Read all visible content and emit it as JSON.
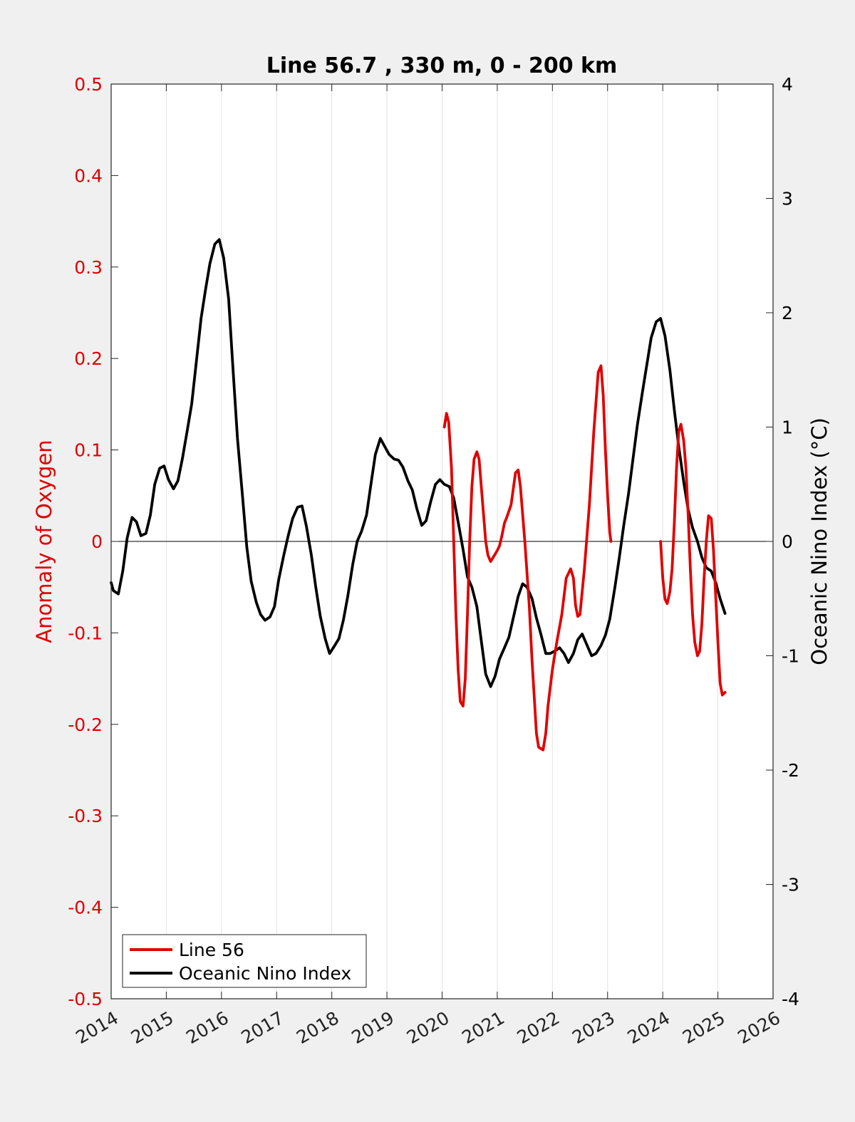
{
  "chart_data": {
    "type": "line",
    "title": "Line 56.7 , 330 m, 0 - 200 km",
    "xlabel": "",
    "ylabel_left": "Anomaly of Oxygen",
    "ylabel_right": "Oceanic Nino Index (°C)",
    "xlim": [
      2014,
      2026
    ],
    "ylim_left": [
      -0.5,
      0.5
    ],
    "ylim_right": [
      -4,
      4
    ],
    "x_ticks": [
      "2014",
      "2015",
      "2016",
      "2017",
      "2018",
      "2019",
      "2020",
      "2021",
      "2022",
      "2023",
      "2024",
      "2025",
      "2026"
    ],
    "y_ticks_left": [
      "-0.5",
      "-0.4",
      "-0.3",
      "-0.2",
      "-0.1",
      "0",
      "0.1",
      "0.2",
      "0.3",
      "0.4",
      "0.5"
    ],
    "y_ticks_right": [
      "-4",
      "-3",
      "-2",
      "-1",
      "0",
      "1",
      "2",
      "3",
      "4"
    ],
    "grid": "vertical",
    "zero_line": true,
    "legend_position": "bottom-left",
    "colors": {
      "line56": "#e00000",
      "oni": "#000000",
      "left_axis": "#e00000",
      "right_axis": "#000000"
    },
    "series": [
      {
        "name": "Line 56",
        "axis": "left",
        "color": "#e00000",
        "segments": [
          [
            [
              2020.04,
              0.125
            ],
            [
              2020.08,
              0.14
            ],
            [
              2020.12,
              0.13
            ],
            [
              2020.17,
              0.08
            ],
            [
              2020.21,
              0.0
            ],
            [
              2020.25,
              -0.08
            ],
            [
              2020.29,
              -0.14
            ],
            [
              2020.33,
              -0.175
            ],
            [
              2020.38,
              -0.18
            ],
            [
              2020.42,
              -0.15
            ],
            [
              2020.46,
              -0.08
            ],
            [
              2020.5,
              0.0
            ],
            [
              2020.54,
              0.06
            ],
            [
              2020.58,
              0.09
            ],
            [
              2020.63,
              0.098
            ],
            [
              2020.67,
              0.09
            ],
            [
              2020.71,
              0.06
            ],
            [
              2020.75,
              0.03
            ],
            [
              2020.79,
              0.0
            ],
            [
              2020.83,
              -0.015
            ],
            [
              2020.88,
              -0.022
            ],
            [
              2020.92,
              -0.018
            ],
            [
              2021.0,
              -0.01
            ],
            [
              2021.04,
              -0.005
            ],
            [
              2021.08,
              0.005
            ],
            [
              2021.13,
              0.02
            ],
            [
              2021.17,
              0.026
            ],
            [
              2021.25,
              0.04
            ],
            [
              2021.33,
              0.075
            ],
            [
              2021.38,
              0.078
            ],
            [
              2021.42,
              0.06
            ],
            [
              2021.5,
              0.0
            ],
            [
              2021.58,
              -0.07
            ],
            [
              2021.63,
              -0.13
            ],
            [
              2021.67,
              -0.17
            ],
            [
              2021.71,
              -0.21
            ],
            [
              2021.75,
              -0.225
            ],
            [
              2021.83,
              -0.228
            ],
            [
              2021.88,
              -0.21
            ],
            [
              2021.92,
              -0.18
            ],
            [
              2022.0,
              -0.14
            ],
            [
              2022.08,
              -0.11
            ],
            [
              2022.17,
              -0.08
            ],
            [
              2022.25,
              -0.04
            ],
            [
              2022.33,
              -0.03
            ],
            [
              2022.38,
              -0.04
            ],
            [
              2022.42,
              -0.07
            ],
            [
              2022.46,
              -0.082
            ],
            [
              2022.5,
              -0.08
            ],
            [
              2022.58,
              -0.03
            ],
            [
              2022.67,
              0.04
            ],
            [
              2022.75,
              0.12
            ],
            [
              2022.83,
              0.185
            ],
            [
              2022.88,
              0.192
            ],
            [
              2022.92,
              0.16
            ],
            [
              2022.96,
              0.1
            ],
            [
              2023.0,
              0.05
            ],
            [
              2023.04,
              0.01
            ],
            [
              2023.06,
              0.0
            ]
          ],
          [
            [
              2023.96,
              0.0
            ],
            [
              2024.0,
              -0.04
            ],
            [
              2024.04,
              -0.063
            ],
            [
              2024.08,
              -0.068
            ],
            [
              2024.13,
              -0.055
            ],
            [
              2024.17,
              -0.03
            ],
            [
              2024.21,
              0.02
            ],
            [
              2024.25,
              0.08
            ],
            [
              2024.29,
              0.12
            ],
            [
              2024.33,
              0.128
            ],
            [
              2024.38,
              0.11
            ],
            [
              2024.42,
              0.08
            ],
            [
              2024.46,
              0.03
            ],
            [
              2024.5,
              -0.03
            ],
            [
              2024.54,
              -0.08
            ],
            [
              2024.58,
              -0.11
            ],
            [
              2024.63,
              -0.125
            ],
            [
              2024.67,
              -0.12
            ],
            [
              2024.71,
              -0.09
            ],
            [
              2024.75,
              -0.04
            ],
            [
              2024.79,
              0.0
            ],
            [
              2024.83,
              0.028
            ],
            [
              2024.88,
              0.025
            ],
            [
              2024.92,
              -0.01
            ],
            [
              2024.96,
              -0.06
            ],
            [
              2025.0,
              -0.11
            ],
            [
              2025.04,
              -0.155
            ],
            [
              2025.08,
              -0.168
            ],
            [
              2025.13,
              -0.165
            ]
          ]
        ]
      },
      {
        "name": "Oceanic Nino Index",
        "axis": "right",
        "color": "#000000",
        "segments": [
          [
            [
              2014.0,
              -0.36
            ],
            [
              2014.04,
              -0.43
            ],
            [
              2014.13,
              -0.46
            ],
            [
              2014.21,
              -0.26
            ],
            [
              2014.29,
              0.03
            ],
            [
              2014.38,
              0.21
            ],
            [
              2014.46,
              0.17
            ],
            [
              2014.54,
              0.05
            ],
            [
              2014.63,
              0.07
            ],
            [
              2014.71,
              0.23
            ],
            [
              2014.79,
              0.5
            ],
            [
              2014.88,
              0.64
            ],
            [
              2014.96,
              0.66
            ],
            [
              2015.04,
              0.54
            ],
            [
              2015.13,
              0.46
            ],
            [
              2015.21,
              0.53
            ],
            [
              2015.29,
              0.72
            ],
            [
              2015.38,
              0.97
            ],
            [
              2015.46,
              1.2
            ],
            [
              2015.54,
              1.55
            ],
            [
              2015.63,
              1.95
            ],
            [
              2015.71,
              2.2
            ],
            [
              2015.79,
              2.43
            ],
            [
              2015.88,
              2.6
            ],
            [
              2015.96,
              2.64
            ],
            [
              2016.04,
              2.48
            ],
            [
              2016.13,
              2.12
            ],
            [
              2016.21,
              1.5
            ],
            [
              2016.29,
              0.9
            ],
            [
              2016.38,
              0.4
            ],
            [
              2016.46,
              -0.05
            ],
            [
              2016.54,
              -0.35
            ],
            [
              2016.63,
              -0.53
            ],
            [
              2016.71,
              -0.64
            ],
            [
              2016.79,
              -0.69
            ],
            [
              2016.88,
              -0.66
            ],
            [
              2016.96,
              -0.57
            ],
            [
              2017.04,
              -0.33
            ],
            [
              2017.13,
              -0.12
            ],
            [
              2017.21,
              0.05
            ],
            [
              2017.29,
              0.2
            ],
            [
              2017.38,
              0.3
            ],
            [
              2017.46,
              0.31
            ],
            [
              2017.54,
              0.13
            ],
            [
              2017.63,
              -0.12
            ],
            [
              2017.71,
              -0.4
            ],
            [
              2017.79,
              -0.65
            ],
            [
              2017.88,
              -0.85
            ],
            [
              2017.96,
              -0.98
            ],
            [
              2018.04,
              -0.92
            ],
            [
              2018.13,
              -0.85
            ],
            [
              2018.21,
              -0.69
            ],
            [
              2018.29,
              -0.48
            ],
            [
              2018.38,
              -0.2
            ],
            [
              2018.46,
              0.0
            ],
            [
              2018.54,
              0.09
            ],
            [
              2018.63,
              0.23
            ],
            [
              2018.71,
              0.5
            ],
            [
              2018.79,
              0.76
            ],
            [
              2018.88,
              0.9
            ],
            [
              2018.96,
              0.83
            ],
            [
              2019.04,
              0.76
            ],
            [
              2019.13,
              0.72
            ],
            [
              2019.21,
              0.71
            ],
            [
              2019.29,
              0.65
            ],
            [
              2019.38,
              0.53
            ],
            [
              2019.46,
              0.45
            ],
            [
              2019.54,
              0.29
            ],
            [
              2019.63,
              0.14
            ],
            [
              2019.71,
              0.18
            ],
            [
              2019.79,
              0.34
            ],
            [
              2019.88,
              0.5
            ],
            [
              2019.96,
              0.54
            ],
            [
              2020.04,
              0.5
            ],
            [
              2020.13,
              0.48
            ],
            [
              2020.21,
              0.38
            ],
            [
              2020.29,
              0.17
            ],
            [
              2020.38,
              -0.07
            ],
            [
              2020.46,
              -0.31
            ],
            [
              2020.54,
              -0.4
            ],
            [
              2020.63,
              -0.57
            ],
            [
              2020.71,
              -0.87
            ],
            [
              2020.79,
              -1.16
            ],
            [
              2020.88,
              -1.27
            ],
            [
              2020.96,
              -1.18
            ],
            [
              2021.04,
              -1.03
            ],
            [
              2021.13,
              -0.93
            ],
            [
              2021.21,
              -0.84
            ],
            [
              2021.29,
              -0.67
            ],
            [
              2021.38,
              -0.48
            ],
            [
              2021.46,
              -0.37
            ],
            [
              2021.54,
              -0.4
            ],
            [
              2021.63,
              -0.5
            ],
            [
              2021.71,
              -0.67
            ],
            [
              2021.79,
              -0.81
            ],
            [
              2021.88,
              -0.98
            ],
            [
              2021.96,
              -0.98
            ],
            [
              2022.04,
              -0.96
            ],
            [
              2022.13,
              -0.93
            ],
            [
              2022.21,
              -0.98
            ],
            [
              2022.29,
              -1.06
            ],
            [
              2022.38,
              -0.98
            ],
            [
              2022.46,
              -0.86
            ],
            [
              2022.54,
              -0.81
            ],
            [
              2022.63,
              -0.91
            ],
            [
              2022.71,
              -1.0
            ],
            [
              2022.79,
              -0.98
            ],
            [
              2022.88,
              -0.91
            ],
            [
              2022.96,
              -0.82
            ],
            [
              2023.04,
              -0.68
            ],
            [
              2023.13,
              -0.41
            ],
            [
              2023.21,
              -0.15
            ],
            [
              2023.29,
              0.13
            ],
            [
              2023.38,
              0.42
            ],
            [
              2023.46,
              0.72
            ],
            [
              2023.54,
              1.02
            ],
            [
              2023.63,
              1.3
            ],
            [
              2023.71,
              1.54
            ],
            [
              2023.79,
              1.78
            ],
            [
              2023.88,
              1.92
            ],
            [
              2023.96,
              1.95
            ],
            [
              2024.04,
              1.8
            ],
            [
              2024.13,
              1.5
            ],
            [
              2024.21,
              1.15
            ],
            [
              2024.29,
              0.83
            ],
            [
              2024.38,
              0.52
            ],
            [
              2024.46,
              0.28
            ],
            [
              2024.54,
              0.12
            ],
            [
              2024.63,
              0.0
            ],
            [
              2024.71,
              -0.14
            ],
            [
              2024.79,
              -0.23
            ],
            [
              2024.88,
              -0.26
            ],
            [
              2024.96,
              -0.36
            ],
            [
              2025.04,
              -0.5
            ],
            [
              2025.13,
              -0.63
            ]
          ]
        ]
      }
    ]
  }
}
